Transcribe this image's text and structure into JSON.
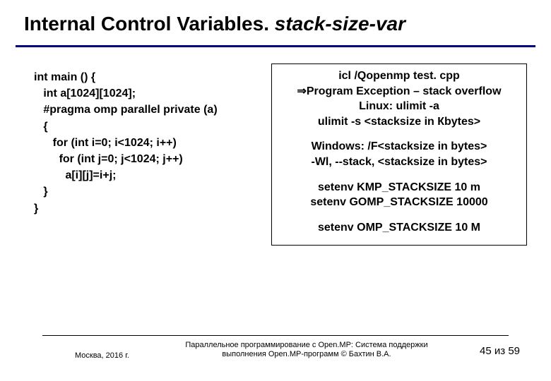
{
  "title": {
    "plain": "Internal Control Variables. ",
    "italic": "stack-size-var"
  },
  "code": {
    "l0": "int main () {",
    "l1": "   int a[1024][1024];",
    "l2": "   #pragma omp parallel private (a)",
    "l3": "   {",
    "l4": "      for (int i=0; i<1024; i++)",
    "l5": "        for (int j=0; j<1024; j++)",
    "l6": "          a[i][j]=i+j;",
    "l7": "   }",
    "l8": "}"
  },
  "right": {
    "p1_l1": "icl /Qopenmp test. cpp",
    "p1_l2a": "⇒",
    "p1_l2b": "Program Exception – stack overflow",
    "p1_l3": "Linux: ulimit -a",
    "p1_l4": "ulimit -s <stacksize in Кbytes>",
    "p2_l1": "Windows: /F<stacksize in bytes>",
    "p2_l2": "-Wl, --stack, <stacksize in bytes>",
    "p3_l1": "setenv KMP_STACKSIZE 10 m",
    "p3_l2": "setenv GOMP_STACKSIZE 10000",
    "p4_l1": "setenv OMP_STACKSIZE 10 M"
  },
  "footer": {
    "left": "Москва, 2016 г.",
    "center": "Параллельное программирование с Open.MP: Система поддержки выполнения Open.MP-программ © Бахтин В.А.",
    "right_cur": "45",
    "right_sep": " из ",
    "right_total": "59"
  },
  "colors": {
    "accent": "#000080",
    "text": "#000000",
    "bg": "#ffffff"
  }
}
